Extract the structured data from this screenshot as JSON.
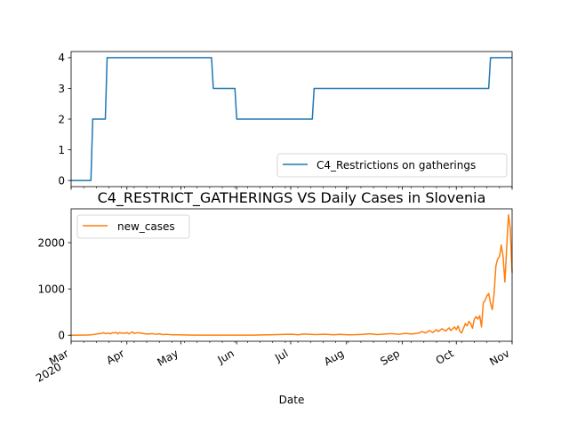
{
  "figure": {
    "title": "C4_RESTRICT_GATHERINGS VS Daily Cases in Slovenia",
    "xlabel": "Date"
  },
  "chart_data": [
    {
      "type": "line",
      "name": "top-panel",
      "series": [
        {
          "name": "C4_Restrictions on gatherings",
          "color": "#1f77b4",
          "step_points": [
            [
              "2020-03-01",
              0
            ],
            [
              "2020-03-12",
              0
            ],
            [
              "2020-03-13",
              2
            ],
            [
              "2020-03-20",
              2
            ],
            [
              "2020-03-21",
              4
            ],
            [
              "2020-05-18",
              4
            ],
            [
              "2020-05-19",
              3
            ],
            [
              "2020-05-31",
              3
            ],
            [
              "2020-06-01",
              2
            ],
            [
              "2020-07-13",
              2
            ],
            [
              "2020-07-14",
              3
            ],
            [
              "2020-10-19",
              3
            ],
            [
              "2020-10-20",
              4
            ],
            [
              "2020-11-01",
              4
            ]
          ]
        }
      ],
      "xlim": [
        "2020-03-01",
        "2020-11-01"
      ],
      "ylim": [
        -0.2,
        4.2
      ],
      "yticks": [
        0,
        1,
        2,
        3,
        4
      ],
      "legend": "lower-right",
      "grid": false
    },
    {
      "type": "line",
      "name": "bottom-panel",
      "series": [
        {
          "name": "new_cases",
          "color": "#ff7f0e",
          "points": [
            [
              "2020-03-01",
              0
            ],
            [
              "2020-03-05",
              1
            ],
            [
              "2020-03-10",
              5
            ],
            [
              "2020-03-12",
              10
            ],
            [
              "2020-03-14",
              20
            ],
            [
              "2020-03-16",
              30
            ],
            [
              "2020-03-18",
              40
            ],
            [
              "2020-03-19",
              55
            ],
            [
              "2020-03-20",
              35
            ],
            [
              "2020-03-22",
              45
            ],
            [
              "2020-03-23",
              30
            ],
            [
              "2020-03-24",
              55
            ],
            [
              "2020-03-25",
              50
            ],
            [
              "2020-03-26",
              60
            ],
            [
              "2020-03-27",
              30
            ],
            [
              "2020-03-28",
              60
            ],
            [
              "2020-03-29",
              40
            ],
            [
              "2020-03-30",
              50
            ],
            [
              "2020-03-31",
              40
            ],
            [
              "2020-04-01",
              60
            ],
            [
              "2020-04-02",
              30
            ],
            [
              "2020-04-03",
              50
            ],
            [
              "2020-04-04",
              70
            ],
            [
              "2020-04-05",
              40
            ],
            [
              "2020-04-07",
              55
            ],
            [
              "2020-04-09",
              45
            ],
            [
              "2020-04-11",
              30
            ],
            [
              "2020-04-13",
              25
            ],
            [
              "2020-04-15",
              35
            ],
            [
              "2020-04-17",
              20
            ],
            [
              "2020-04-19",
              30
            ],
            [
              "2020-04-21",
              15
            ],
            [
              "2020-04-23",
              20
            ],
            [
              "2020-04-26",
              10
            ],
            [
              "2020-04-30",
              8
            ],
            [
              "2020-05-05",
              5
            ],
            [
              "2020-05-10",
              3
            ],
            [
              "2020-05-20",
              1
            ],
            [
              "2020-06-01",
              1
            ],
            [
              "2020-06-10",
              3
            ],
            [
              "2020-06-15",
              6
            ],
            [
              "2020-06-20",
              10
            ],
            [
              "2020-06-24",
              15
            ],
            [
              "2020-06-28",
              18
            ],
            [
              "2020-07-02",
              22
            ],
            [
              "2020-07-05",
              10
            ],
            [
              "2020-07-08",
              25
            ],
            [
              "2020-07-12",
              20
            ],
            [
              "2020-07-15",
              15
            ],
            [
              "2020-07-20",
              22
            ],
            [
              "2020-07-25",
              10
            ],
            [
              "2020-07-28",
              18
            ],
            [
              "2020-08-02",
              8
            ],
            [
              "2020-08-06",
              12
            ],
            [
              "2020-08-10",
              20
            ],
            [
              "2020-08-14",
              30
            ],
            [
              "2020-08-18",
              15
            ],
            [
              "2020-08-22",
              25
            ],
            [
              "2020-08-26",
              35
            ],
            [
              "2020-08-30",
              20
            ],
            [
              "2020-09-03",
              40
            ],
            [
              "2020-09-06",
              25
            ],
            [
              "2020-09-10",
              45
            ],
            [
              "2020-09-12",
              80
            ],
            [
              "2020-09-14",
              50
            ],
            [
              "2020-09-16",
              100
            ],
            [
              "2020-09-18",
              60
            ],
            [
              "2020-09-20",
              120
            ],
            [
              "2020-09-21",
              80
            ],
            [
              "2020-09-23",
              140
            ],
            [
              "2020-09-25",
              90
            ],
            [
              "2020-09-27",
              160
            ],
            [
              "2020-09-28",
              100
            ],
            [
              "2020-09-30",
              180
            ],
            [
              "2020-10-01",
              120
            ],
            [
              "2020-10-02",
              200
            ],
            [
              "2020-10-03",
              80
            ],
            [
              "2020-10-04",
              50
            ],
            [
              "2020-10-05",
              150
            ],
            [
              "2020-10-06",
              250
            ],
            [
              "2020-10-07",
              200
            ],
            [
              "2020-10-08",
              300
            ],
            [
              "2020-10-09",
              250
            ],
            [
              "2020-10-10",
              150
            ],
            [
              "2020-10-11",
              350
            ],
            [
              "2020-10-12",
              400
            ],
            [
              "2020-10-13",
              350
            ],
            [
              "2020-10-14",
              420
            ],
            [
              "2020-10-15",
              180
            ],
            [
              "2020-10-16",
              700
            ],
            [
              "2020-10-17",
              750
            ],
            [
              "2020-10-18",
              850
            ],
            [
              "2020-10-19",
              900
            ],
            [
              "2020-10-20",
              700
            ],
            [
              "2020-10-21",
              550
            ],
            [
              "2020-10-22",
              900
            ],
            [
              "2020-10-23",
              1500
            ],
            [
              "2020-10-24",
              1650
            ],
            [
              "2020-10-25",
              1700
            ],
            [
              "2020-10-26",
              1950
            ],
            [
              "2020-10-27",
              1700
            ],
            [
              "2020-10-28",
              1150
            ],
            [
              "2020-10-29",
              1900
            ],
            [
              "2020-10-30",
              2600
            ],
            [
              "2020-10-31",
              2300
            ],
            [
              "2020-10-31T12",
              1800
            ],
            [
              "2020-11-01",
              1350
            ]
          ]
        }
      ],
      "xlim": [
        "2020-03-01",
        "2020-11-01"
      ],
      "ylim": [
        -130,
        2730
      ],
      "yticks": [
        0,
        1000,
        2000
      ],
      "legend": "upper-left",
      "grid": false
    }
  ],
  "xaxis": {
    "major_ticks": [
      {
        "date": "2020-03-01",
        "label": "Mar",
        "sublabel": "2020"
      },
      {
        "date": "2020-04-01",
        "label": "Apr"
      },
      {
        "date": "2020-05-01",
        "label": "May"
      },
      {
        "date": "2020-06-01",
        "label": "Jun"
      },
      {
        "date": "2020-07-01",
        "label": "Jul"
      },
      {
        "date": "2020-08-01",
        "label": "Aug"
      },
      {
        "date": "2020-09-01",
        "label": "Sep"
      },
      {
        "date": "2020-10-01",
        "label": "Oct"
      },
      {
        "date": "2020-11-01",
        "label": "Nov"
      }
    ]
  }
}
